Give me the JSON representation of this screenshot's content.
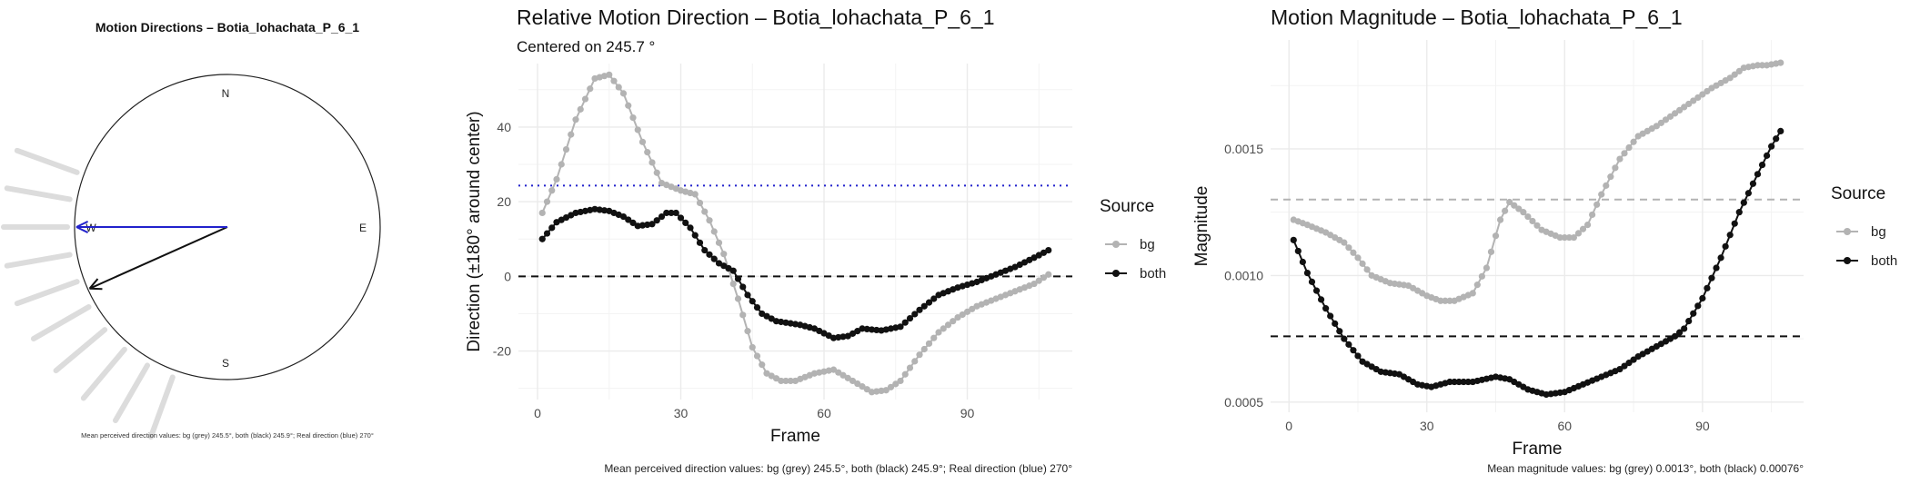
{
  "panels": {
    "compass": {
      "title": "Motion Directions – Botia_lohachata_P_6_1",
      "caption": "Mean perceived direction values: bg (grey) 245.5°, both (black) 245.9°; Real direction (blue) 270°",
      "labels": {
        "n": "N",
        "e": "E",
        "s": "S",
        "w": "W"
      }
    },
    "direction": {
      "title": "Relative Motion Direction – Botia_lohachata_P_6_1",
      "subtitle": "Centered on  245.7 °",
      "caption": "Mean perceived direction values: bg (grey) 245.5°, both (black) 245.9°; Real direction (blue) 270°"
    },
    "magnitude": {
      "title": "Motion Magnitude – Botia_lohachata_P_6_1",
      "caption": "Mean magnitude values: bg (grey) 0.0013°, both (black) 0.00076°"
    }
  },
  "colors": {
    "bg": "#b3b3b3",
    "both": "#111111",
    "real": "#2222cc",
    "grid": "#ebebeb"
  },
  "chart_data": [
    {
      "type": "scatter",
      "title": "Motion Directions – Botia_lohachata_P_6_1",
      "description_style": "compass",
      "bg_arrow_directions_deg": [
        290,
        280,
        270,
        260,
        250,
        240,
        230,
        220,
        210,
        200
      ],
      "mean_arrows": [
        {
          "name": "bg",
          "direction_deg": 245.5,
          "color": "grey"
        },
        {
          "name": "both",
          "direction_deg": 245.9,
          "color": "black"
        },
        {
          "name": "real",
          "direction_deg": 270,
          "color": "blue"
        }
      ]
    },
    {
      "type": "line",
      "title": "Relative Motion Direction – Botia_lohachata_P_6_1",
      "subtitle": "Centered on  245.7 °",
      "xlabel": "Frame",
      "ylabel": "Direction (±180° around center)",
      "xlim": [
        -4,
        112
      ],
      "ylim": [
        -33,
        57
      ],
      "xticks": [
        0,
        30,
        60,
        90
      ],
      "yticks": [
        -20,
        0,
        20,
        40
      ],
      "legend": {
        "title": "Source",
        "position": "right",
        "entries": [
          "bg",
          "both"
        ]
      },
      "hlines": [
        {
          "y": 0,
          "style": "dashed",
          "color": "black"
        },
        {
          "y": 24.3,
          "style": "dotted",
          "color": "blue"
        }
      ],
      "series": [
        {
          "name": "bg",
          "color": "grey",
          "knots": [
            [
              1,
              17
            ],
            [
              4,
              26
            ],
            [
              8,
              42
            ],
            [
              12,
              53
            ],
            [
              15,
              54
            ],
            [
              18,
              49
            ],
            [
              22,
              36
            ],
            [
              26,
              25
            ],
            [
              30,
              23
            ],
            [
              33,
              22
            ],
            [
              36,
              15
            ],
            [
              39,
              6
            ],
            [
              42,
              -6
            ],
            [
              45,
              -19
            ],
            [
              48,
              -26
            ],
            [
              51,
              -28
            ],
            [
              54,
              -28
            ],
            [
              58,
              -26
            ],
            [
              62,
              -25
            ],
            [
              66,
              -28
            ],
            [
              70,
              -31
            ],
            [
              73,
              -30.5
            ],
            [
              76,
              -28
            ],
            [
              80,
              -21
            ],
            [
              84,
              -15
            ],
            [
              88,
              -11
            ],
            [
              92,
              -8
            ],
            [
              96,
              -6
            ],
            [
              100,
              -4
            ],
            [
              104,
              -2
            ],
            [
              107,
              0.5
            ]
          ]
        },
        {
          "name": "both",
          "color": "black",
          "knots": [
            [
              1,
              10
            ],
            [
              4,
              14.5
            ],
            [
              8,
              17
            ],
            [
              12,
              18
            ],
            [
              15,
              17.5
            ],
            [
              18,
              16
            ],
            [
              21,
              13.5
            ],
            [
              24,
              14
            ],
            [
              27,
              17
            ],
            [
              29,
              17
            ],
            [
              32,
              13
            ],
            [
              35,
              7
            ],
            [
              38,
              3.5
            ],
            [
              41,
              1.5
            ],
            [
              44,
              -5
            ],
            [
              47,
              -10
            ],
            [
              50,
              -12
            ],
            [
              55,
              -13
            ],
            [
              58,
              -14
            ],
            [
              62,
              -16.5
            ],
            [
              65,
              -16
            ],
            [
              68,
              -14
            ],
            [
              72,
              -14.5
            ],
            [
              76,
              -13.5
            ],
            [
              80,
              -9
            ],
            [
              84,
              -5
            ],
            [
              88,
              -3
            ],
            [
              92,
              -1.5
            ],
            [
              96,
              0.5
            ],
            [
              100,
              2.5
            ],
            [
              104,
              5
            ],
            [
              107,
              7
            ]
          ]
        }
      ]
    },
    {
      "type": "line",
      "title": "Motion Magnitude – Botia_lohachata_P_6_1",
      "xlabel": "Frame",
      "ylabel": "Magnitude",
      "xlim": [
        -4,
        112
      ],
      "ylim": [
        0.00046,
        0.00193
      ],
      "xticks": [
        0,
        30,
        60,
        90
      ],
      "yticks": [
        0.0005,
        0.001,
        0.0015
      ],
      "ytick_labels": [
        "0.0005",
        "0.0010",
        "0.0015"
      ],
      "legend": {
        "title": "Source",
        "position": "right",
        "entries": [
          "bg",
          "both"
        ]
      },
      "hlines": [
        {
          "y": 0.0013,
          "style": "dashed",
          "color": "grey"
        },
        {
          "y": 0.00076,
          "style": "dashed",
          "color": "black"
        }
      ],
      "series": [
        {
          "name": "bg",
          "color": "grey",
          "knots": [
            [
              1,
              0.00122
            ],
            [
              4,
              0.0012
            ],
            [
              8,
              0.00117
            ],
            [
              12,
              0.00113
            ],
            [
              15,
              0.00107
            ],
            [
              18,
              0.001
            ],
            [
              22,
              0.00097
            ],
            [
              26,
              0.00096
            ],
            [
              30,
              0.00092
            ],
            [
              33,
              0.0009
            ],
            [
              36,
              0.0009
            ],
            [
              40,
              0.00093
            ],
            [
              43,
              0.00103
            ],
            [
              46,
              0.00122
            ],
            [
              48,
              0.00129
            ],
            [
              51,
              0.00125
            ],
            [
              55,
              0.00118
            ],
            [
              59,
              0.00115
            ],
            [
              62,
              0.00115
            ],
            [
              65,
              0.0012
            ],
            [
              68,
              0.00132
            ],
            [
              72,
              0.00146
            ],
            [
              76,
              0.00155
            ],
            [
              80,
              0.00159
            ],
            [
              84,
              0.00164
            ],
            [
              88,
              0.00169
            ],
            [
              92,
              0.00174
            ],
            [
              96,
              0.00178
            ],
            [
              99,
              0.00182
            ],
            [
              102,
              0.00183
            ],
            [
              104,
              0.00183
            ],
            [
              107,
              0.00184
            ]
          ]
        },
        {
          "name": "both",
          "color": "black",
          "knots": [
            [
              1,
              0.00114
            ],
            [
              4,
              0.00101
            ],
            [
              8,
              0.00087
            ],
            [
              12,
              0.00075
            ],
            [
              16,
              0.00066
            ],
            [
              20,
              0.00062
            ],
            [
              24,
              0.00061
            ],
            [
              28,
              0.00057
            ],
            [
              31,
              0.00056
            ],
            [
              35,
              0.00058
            ],
            [
              40,
              0.00058
            ],
            [
              45,
              0.0006
            ],
            [
              48,
              0.00059
            ],
            [
              52,
              0.00055
            ],
            [
              56,
              0.00053
            ],
            [
              60,
              0.00054
            ],
            [
              64,
              0.00057
            ],
            [
              68,
              0.0006
            ],
            [
              72,
              0.00063
            ],
            [
              76,
              0.00068
            ],
            [
              80,
              0.00072
            ],
            [
              84,
              0.00076
            ],
            [
              86,
              0.00079
            ],
            [
              90,
              0.00091
            ],
            [
              94,
              0.00107
            ],
            [
              98,
              0.00125
            ],
            [
              102,
              0.0014
            ],
            [
              105,
              0.00151
            ],
            [
              107,
              0.00157
            ]
          ]
        }
      ]
    }
  ]
}
